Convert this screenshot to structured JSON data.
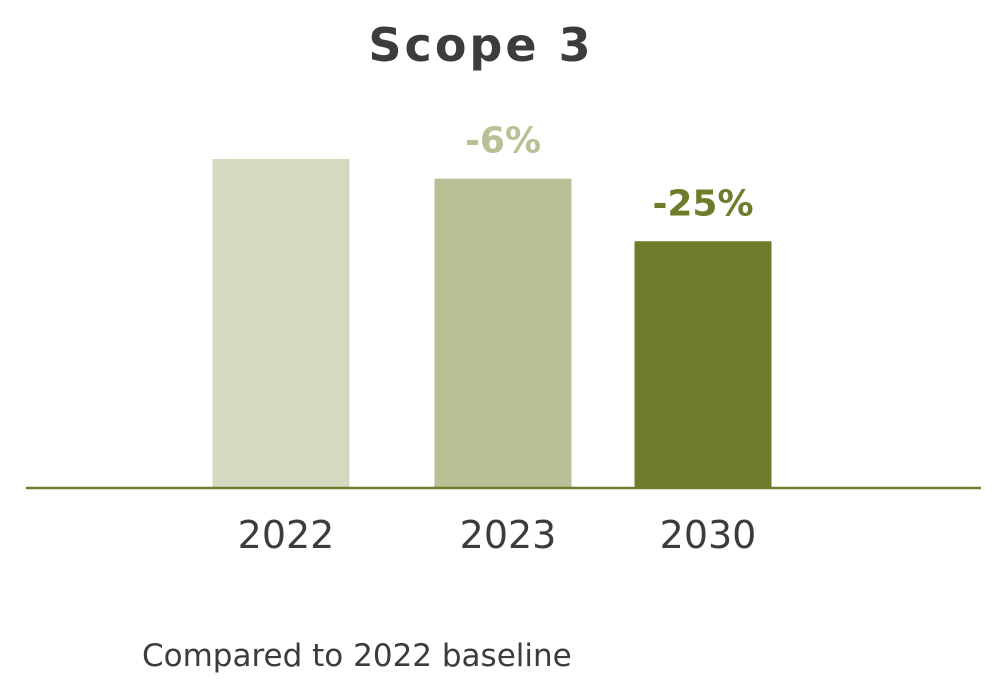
{
  "chart_data": {
    "type": "bar",
    "title": "Scope 3",
    "categories": [
      "2022",
      "2023",
      "2030"
    ],
    "values": [
      100,
      94,
      75
    ],
    "data_labels": [
      "",
      "-6%",
      "-25%"
    ],
    "bar_colors": [
      "#d5d9bf",
      "#b9c095",
      "#6e7d2b"
    ],
    "label_colors": [
      "#b9c095",
      "#b9c095",
      "#6e7d2b"
    ],
    "axis_color": "#6e7d2b",
    "ylim": [
      0,
      100
    ],
    "xlabel": "",
    "ylabel": "",
    "grid": false,
    "legend": "none"
  },
  "footnote": "Compared to 2022 baseline"
}
